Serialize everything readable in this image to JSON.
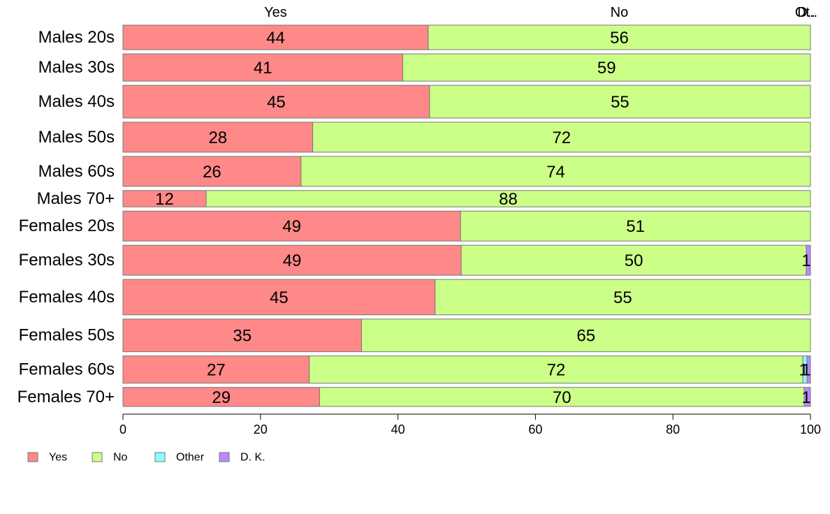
{
  "chart_data": {
    "type": "bar",
    "orientation": "horizontal",
    "stacked": true,
    "title": "",
    "xlabel": "",
    "ylabel": "",
    "xlim": [
      0,
      100
    ],
    "x_ticks": [
      "0",
      "20",
      "40",
      "60",
      "80",
      "100"
    ],
    "grid": false,
    "legend_position": "bottom-left",
    "top_labels": [
      "Yes",
      "No",
      "Ot..",
      "D.."
    ],
    "categories": [
      "Males 20s",
      "Males 30s",
      "Males 40s",
      "Males 50s",
      "Males 60s",
      "Males 70+",
      "Females 20s",
      "Females 30s",
      "Females 40s",
      "Females 50s",
      "Females 60s",
      "Females 70+"
    ],
    "row_weights": [
      9,
      10,
      12,
      11,
      11,
      6,
      11,
      11,
      13,
      12,
      10,
      7
    ],
    "series": [
      {
        "name": "Yes",
        "color": "#ff8888",
        "values": [
          44.4,
          40.7,
          44.6,
          27.6,
          25.9,
          12.1,
          49.1,
          49.2,
          45.4,
          34.7,
          27.1,
          28.6
        ]
      },
      {
        "name": "No",
        "color": "#ccff88",
        "values": [
          55.6,
          59.3,
          55.4,
          72.4,
          74.1,
          87.9,
          50.9,
          50.2,
          54.6,
          65.3,
          71.8,
          70.5
        ]
      },
      {
        "name": "Other",
        "color": "#88ffff",
        "values": [
          0,
          0,
          0,
          0,
          0,
          0,
          0,
          0,
          0,
          0,
          0.6,
          0
        ]
      },
      {
        "name": "D. K.",
        "color": "#bb88ff",
        "values": [
          0,
          0,
          0,
          0,
          0,
          0,
          0,
          0.6,
          0,
          0,
          0.5,
          0.9
        ]
      }
    ],
    "segment_labels": [
      [
        "44",
        "56",
        "",
        ""
      ],
      [
        "41",
        "59",
        "",
        ""
      ],
      [
        "45",
        "55",
        "",
        ""
      ],
      [
        "28",
        "72",
        "",
        ""
      ],
      [
        "26",
        "74",
        "",
        ""
      ],
      [
        "12",
        "88",
        "",
        ""
      ],
      [
        "49",
        "51",
        "",
        ""
      ],
      [
        "49",
        "50",
        "",
        "1"
      ],
      [
        "45",
        "55",
        "",
        ""
      ],
      [
        "35",
        "65",
        "",
        ""
      ],
      [
        "27",
        "72",
        "1",
        "1"
      ],
      [
        "29",
        "70",
        "",
        "1"
      ]
    ]
  }
}
